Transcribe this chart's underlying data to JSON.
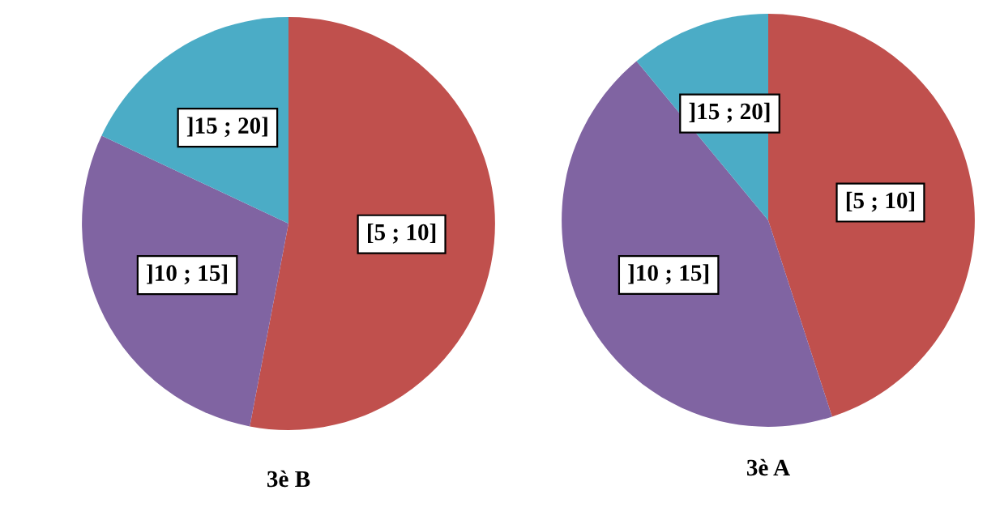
{
  "chart_data": [
    {
      "type": "pie",
      "title": "3è B",
      "categories": [
        "[5 ; 10]",
        "]10 ; 15]",
        "]15 ; 20]"
      ],
      "values": [
        53,
        29,
        18
      ],
      "colors": [
        "#c0504d",
        "#8064a2",
        "#4bacc6"
      ],
      "legend": false
    },
    {
      "type": "pie",
      "title": "3è A",
      "categories": [
        "[5 ; 10]",
        "]10 ; 15]",
        "]15 ; 20]"
      ],
      "values": [
        45,
        44,
        11
      ],
      "colors": [
        "#c0504d",
        "#8064a2",
        "#4bacc6"
      ],
      "legend": false
    }
  ]
}
